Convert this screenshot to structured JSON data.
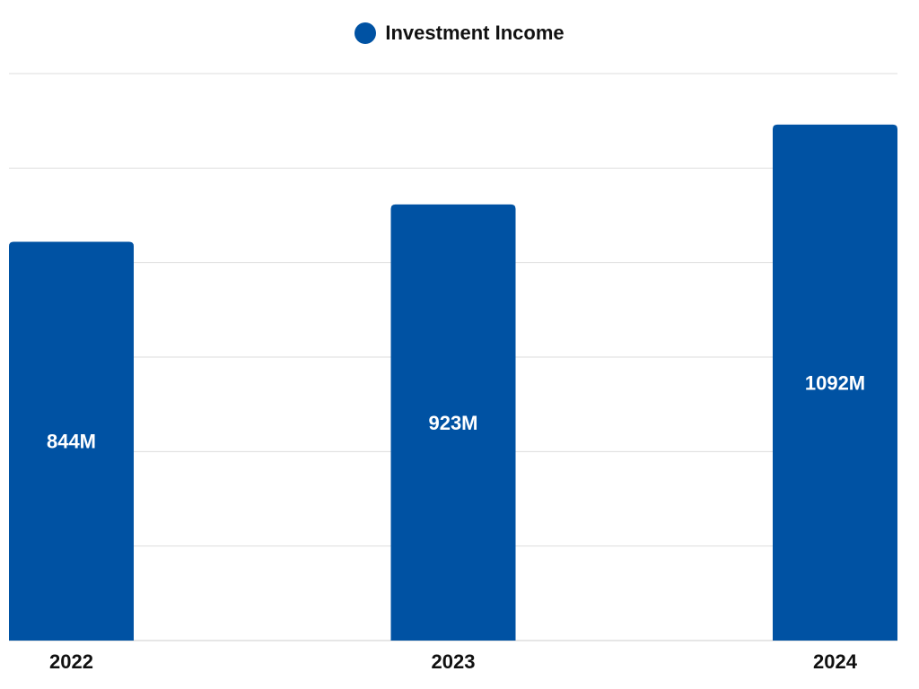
{
  "chart_data": {
    "type": "bar",
    "categories": [
      "2022",
      "2023",
      "2024"
    ],
    "series": [
      {
        "name": "Investment Income",
        "values": [
          844,
          923,
          1092
        ],
        "labels": [
          "844M",
          "923M",
          "1092M"
        ]
      }
    ],
    "ylim": [
      0,
      1200
    ],
    "grid": true,
    "legend_position": "top-center",
    "colors": {
      "bar": "#0052A3",
      "grid": "#dddddd",
      "axis": "#cccccc"
    }
  }
}
